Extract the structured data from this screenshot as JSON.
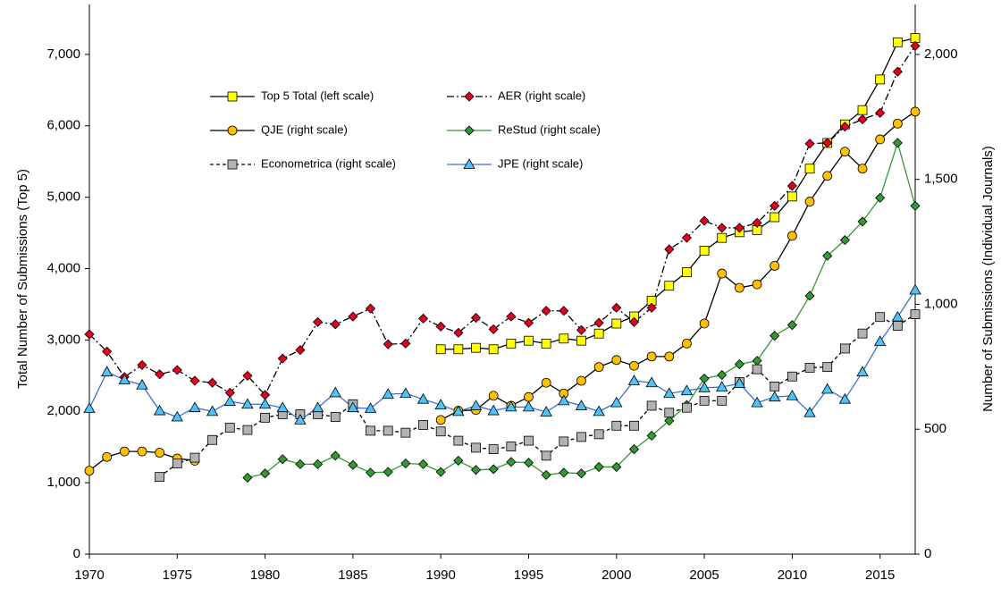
{
  "chart_data": {
    "type": "line",
    "ylabel": "Total Number of Submissions (Top 5)",
    "y2label": "Number of Submissions (Individual Journals)",
    "x": [
      1970,
      1971,
      1972,
      1973,
      1974,
      1975,
      1976,
      1977,
      1978,
      1979,
      1980,
      1981,
      1982,
      1983,
      1984,
      1985,
      1986,
      1987,
      1988,
      1989,
      1990,
      1991,
      1992,
      1993,
      1994,
      1995,
      1996,
      1997,
      1998,
      1999,
      2000,
      2001,
      2002,
      2003,
      2004,
      2005,
      2006,
      2007,
      2008,
      2009,
      2010,
      2011,
      2012,
      2013,
      2014,
      2015,
      2016,
      2017
    ],
    "xlim": [
      1970,
      2017
    ],
    "xticks": [
      1970,
      1975,
      1980,
      1985,
      1990,
      1995,
      2000,
      2005,
      2010,
      2015
    ],
    "ylim": [
      0,
      7700
    ],
    "yticks": [
      0,
      {
        "value": 1000,
        "label": "1,000"
      },
      {
        "value": 2000,
        "label": "2,000"
      },
      {
        "value": 3000,
        "label": "3,000"
      },
      {
        "value": 4000,
        "label": "4,000"
      },
      {
        "value": 5000,
        "label": "5,000"
      },
      {
        "value": 6000,
        "label": "6,000"
      },
      {
        "value": 7000,
        "label": "7,000"
      }
    ],
    "y2lim": [
      0,
      2200
    ],
    "y2ticks": [
      0,
      500,
      {
        "value": 1000,
        "label": "1,000"
      },
      {
        "value": 1500,
        "label": "1,500"
      },
      {
        "value": 2000,
        "label": "2,000"
      }
    ],
    "series": [
      {
        "name": "Top 5 Total (left scale)",
        "color": "#ffff00",
        "line_color": "#000000",
        "marker": "square",
        "dash": "solid",
        "values": [
          null,
          null,
          null,
          null,
          null,
          null,
          null,
          null,
          null,
          null,
          null,
          null,
          null,
          null,
          null,
          null,
          null,
          null,
          null,
          null,
          2870,
          2870,
          2890,
          2870,
          2950,
          2990,
          2950,
          3020,
          2990,
          3090,
          3230,
          3330,
          3550,
          3760,
          3950,
          4250,
          4430,
          4510,
          4540,
          4720,
          5010,
          5400,
          5760,
          6020,
          6220,
          6650,
          7170,
          7230
        ]
      },
      {
        "name": "AER (right scale)",
        "color": "#e3001b",
        "line_color": "#000000",
        "marker": "diamond",
        "dash": "dashdot",
        "axis": "y2",
        "values": [
          880,
          811,
          709,
          757,
          720,
          737,
          694,
          686,
          646,
          714,
          637,
          783,
          817,
          929,
          920,
          951,
          983,
          840,
          843,
          943,
          911,
          886,
          946,
          900,
          951,
          926,
          974,
          974,
          897,
          926,
          986,
          929,
          986,
          1220,
          1266,
          1334,
          1306,
          1306,
          1326,
          1394,
          1474,
          1643,
          1646,
          1711,
          1740,
          1766,
          1931,
          2034
        ]
      },
      {
        "name": "QJE (right scale)",
        "color": "#ffc000",
        "line_color": "#000000",
        "marker": "circle",
        "dash": "solid",
        "axis": "y2",
        "values": [
          334,
          389,
          411,
          411,
          406,
          383,
          374,
          null,
          null,
          null,
          null,
          null,
          null,
          null,
          null,
          null,
          null,
          null,
          null,
          null,
          537,
          574,
          577,
          634,
          594,
          629,
          686,
          643,
          694,
          749,
          777,
          754,
          791,
          791,
          843,
          923,
          1123,
          1066,
          1080,
          1154,
          1274,
          1411,
          1514,
          1611,
          1543,
          1660,
          1723,
          1771
        ]
      },
      {
        "name": "ReStud (right scale)",
        "color": "#339933",
        "line_color": "#339933",
        "marker": "diamond",
        "dash": "solid",
        "axis": "y2",
        "values": [
          null,
          null,
          null,
          null,
          null,
          null,
          null,
          null,
          null,
          306,
          323,
          380,
          360,
          360,
          394,
          357,
          326,
          329,
          363,
          360,
          329,
          374,
          337,
          340,
          369,
          366,
          317,
          326,
          323,
          349,
          349,
          420,
          474,
          534,
          597,
          703,
          717,
          760,
          774,
          874,
          917,
          1034,
          1194,
          1257,
          1331,
          1426,
          1646,
          1394
        ]
      },
      {
        "name": "Econometrica (right scale)",
        "color": "#b3b3b3",
        "line_color": "#000000",
        "marker": "square",
        "dash": "dashed",
        "axis": "y2",
        "values": [
          null,
          null,
          null,
          null,
          309,
          363,
          386,
          457,
          506,
          497,
          546,
          560,
          560,
          560,
          549,
          600,
          494,
          494,
          486,
          517,
          491,
          454,
          426,
          420,
          431,
          454,
          394,
          451,
          469,
          480,
          514,
          514,
          594,
          566,
          586,
          614,
          614,
          689,
          740,
          671,
          711,
          746,
          749,
          823,
          883,
          949,
          914,
          960
        ]
      },
      {
        "name": "JPE (right scale)",
        "color": "#4fc3f7",
        "line_color": "#3b6fd6",
        "marker": "triangle",
        "dash": "solid",
        "axis": "y2",
        "values": [
          583,
          729,
          697,
          677,
          574,
          549,
          586,
          571,
          611,
          600,
          600,
          586,
          537,
          586,
          646,
          586,
          583,
          640,
          643,
          620,
          597,
          571,
          594,
          574,
          589,
          589,
          569,
          614,
          594,
          571,
          606,
          694,
          686,
          643,
          654,
          666,
          669,
          683,
          606,
          629,
          634,
          566,
          660,
          620,
          729,
          851,
          949,
          1057
        ]
      }
    ]
  }
}
